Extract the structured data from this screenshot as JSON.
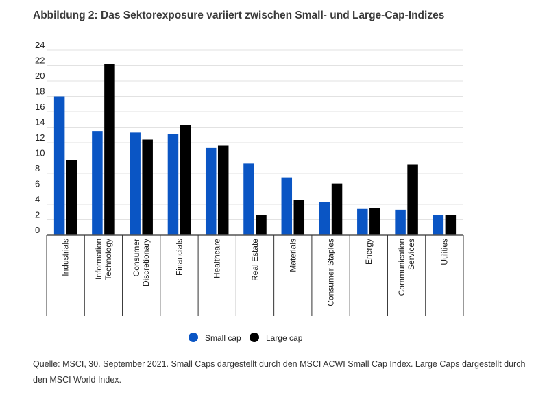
{
  "title": "Abbildung 2: Das Sektorexposure variiert zwischen Small- und Large-Cap-Indizes",
  "source": "Quelle: MSCI, 30. September 2021. Small Caps dargestellt durch den MSCI ACWI Small Cap Index. Large Caps dargestellt durch den MSCI World Index.",
  "colors": {
    "small": "#0a55c4",
    "large": "#000000",
    "grid": "#e2e2e2",
    "axis": "#555555"
  },
  "chart_data": {
    "type": "bar",
    "categories": [
      [
        "Industrials"
      ],
      [
        "Information",
        "Technology"
      ],
      [
        "Consumer",
        "Discretionary"
      ],
      [
        "Financials"
      ],
      [
        "Healthcare"
      ],
      [
        "Real Estate"
      ],
      [
        "Materials"
      ],
      [
        "Consumer Staples"
      ],
      [
        "Energy"
      ],
      [
        "Communication",
        "Services"
      ],
      [
        "Utilities"
      ]
    ],
    "series": [
      {
        "name": "Small cap",
        "values": [
          18.0,
          13.5,
          13.3,
          13.1,
          11.3,
          9.3,
          7.5,
          4.3,
          3.4,
          3.3,
          2.6
        ]
      },
      {
        "name": "Large cap",
        "values": [
          9.7,
          22.2,
          12.4,
          14.3,
          11.6,
          2.6,
          4.6,
          6.7,
          3.5,
          9.2,
          2.6
        ]
      }
    ],
    "yticks": [
      "0",
      "2",
      "4",
      "6",
      "8",
      "10",
      "12",
      "14",
      "16",
      "18",
      "20",
      "22",
      "24"
    ],
    "ylim": [
      0,
      24
    ],
    "grid": true,
    "legend": "bottom"
  }
}
